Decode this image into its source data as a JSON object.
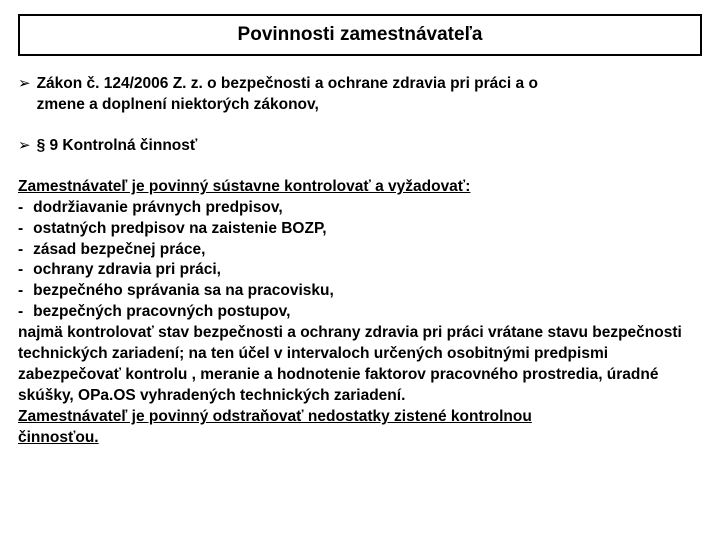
{
  "title": "Povinnosti zamestnávateľa",
  "law_ref": "Zákon č. 124/2006 Z. z. o bezpečnosti a ochrane zdravia pri práci a o",
  "law_ref2": "zmene a doplnení niektorých zákonov,",
  "section": "§ 9  Kontrolná činnosť",
  "intro": "Zamestnávateľ je povinný sústavne kontrolovať a vyžadovať:",
  "items": [
    "dodržiavanie právnych predpisov,",
    "ostatných predpisov na zaistenie BOZP,",
    "zásad bezpečnej práce,",
    "ochrany zdravia pri práci,",
    "bezpečného správania sa na pracovisku,",
    "bezpečných pracovných postupov,"
  ],
  "tail1": "najmä kontrolovať stav bezpečnosti a ochrany zdravia pri práci vrátane stavu bezpečnosti technických zariadení; na ten účel v intervaloch určených osobitnými predpismi zabezpečovať kontrolu , meranie a hodnotenie faktorov pracovného prostredia, úradné skúšky, OPa.OS vyhradených technických zariadení.",
  "tail2a": "Zamestnávateľ je povinný odstraňovať nedostatky zistené kontrolnou",
  "tail2b": "činnosťou.",
  "colors": {
    "text": "#000000",
    "background": "#ffffff",
    "border": "#000000"
  },
  "fonts": {
    "title_size": 19,
    "body_size": 15.5,
    "weight": "bold"
  }
}
